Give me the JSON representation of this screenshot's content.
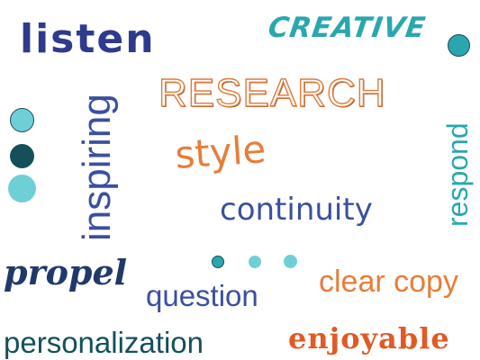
{
  "words": {
    "listen": "listen",
    "creative": "CREATIVE",
    "research": "RESEARCH",
    "inspiring": "inspiring",
    "style": "style",
    "continuity": "continuity",
    "respond": "respond",
    "propel": "propel",
    "question": "question",
    "clear_copy": "clear copy",
    "personalization": "personalization",
    "enjoyable": "enjoyable"
  },
  "colors": {
    "navy": "#2e3a8c",
    "teal": "#2aa7ae",
    "orange": "#e67e3a",
    "orange_red": "#e05a25",
    "blue": "#3b4fa0",
    "dark_teal": "#14505a",
    "light_teal": "#6fcfd6",
    "dark_navy": "#1f3a5a"
  }
}
